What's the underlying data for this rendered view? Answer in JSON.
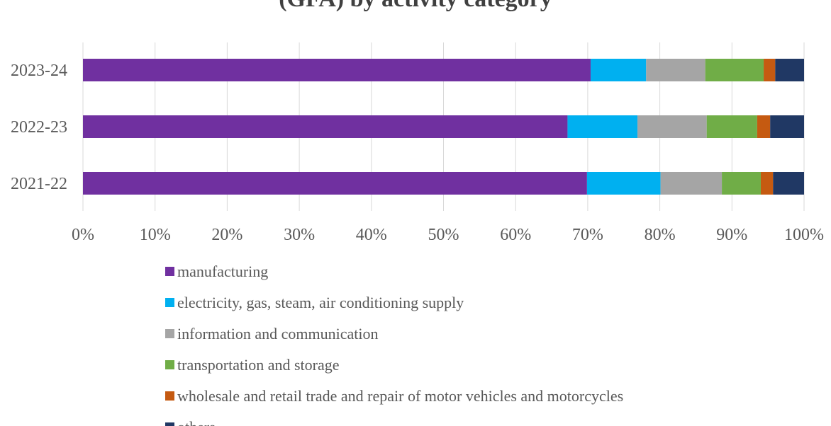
{
  "chart_data": {
    "type": "bar",
    "orientation": "horizontal",
    "stacked": "percent",
    "title": "(GFA) by activity category",
    "categories": [
      "2023-24",
      "2022-23",
      "2021-22"
    ],
    "xlim": [
      0,
      100
    ],
    "x_ticks": [
      "0%",
      "10%",
      "20%",
      "30%",
      "40%",
      "50%",
      "60%",
      "70%",
      "80%",
      "90%",
      "100%"
    ],
    "grid": true,
    "legend_position": "bottom",
    "series": [
      {
        "name": "manufacturing",
        "color": "#7030A0",
        "values": [
          70.4,
          67.2,
          69.9
        ]
      },
      {
        "name": "electricity, gas, steam, air conditioning supply",
        "color": "#00B0F0",
        "values": [
          7.7,
          9.7,
          10.2
        ]
      },
      {
        "name": "information and communication",
        "color": "#A5A5A5",
        "values": [
          8.2,
          9.6,
          8.5
        ]
      },
      {
        "name": "transportation and storage",
        "color": "#70AD47",
        "values": [
          8.1,
          7.0,
          5.4
        ]
      },
      {
        "name": "wholesale and retail trade and repair of motor vehicles and motorcycles",
        "color": "#C55A11",
        "values": [
          1.6,
          1.8,
          1.7
        ]
      },
      {
        "name": "others",
        "color": "#203864",
        "values": [
          4.0,
          4.7,
          4.3
        ]
      }
    ]
  }
}
